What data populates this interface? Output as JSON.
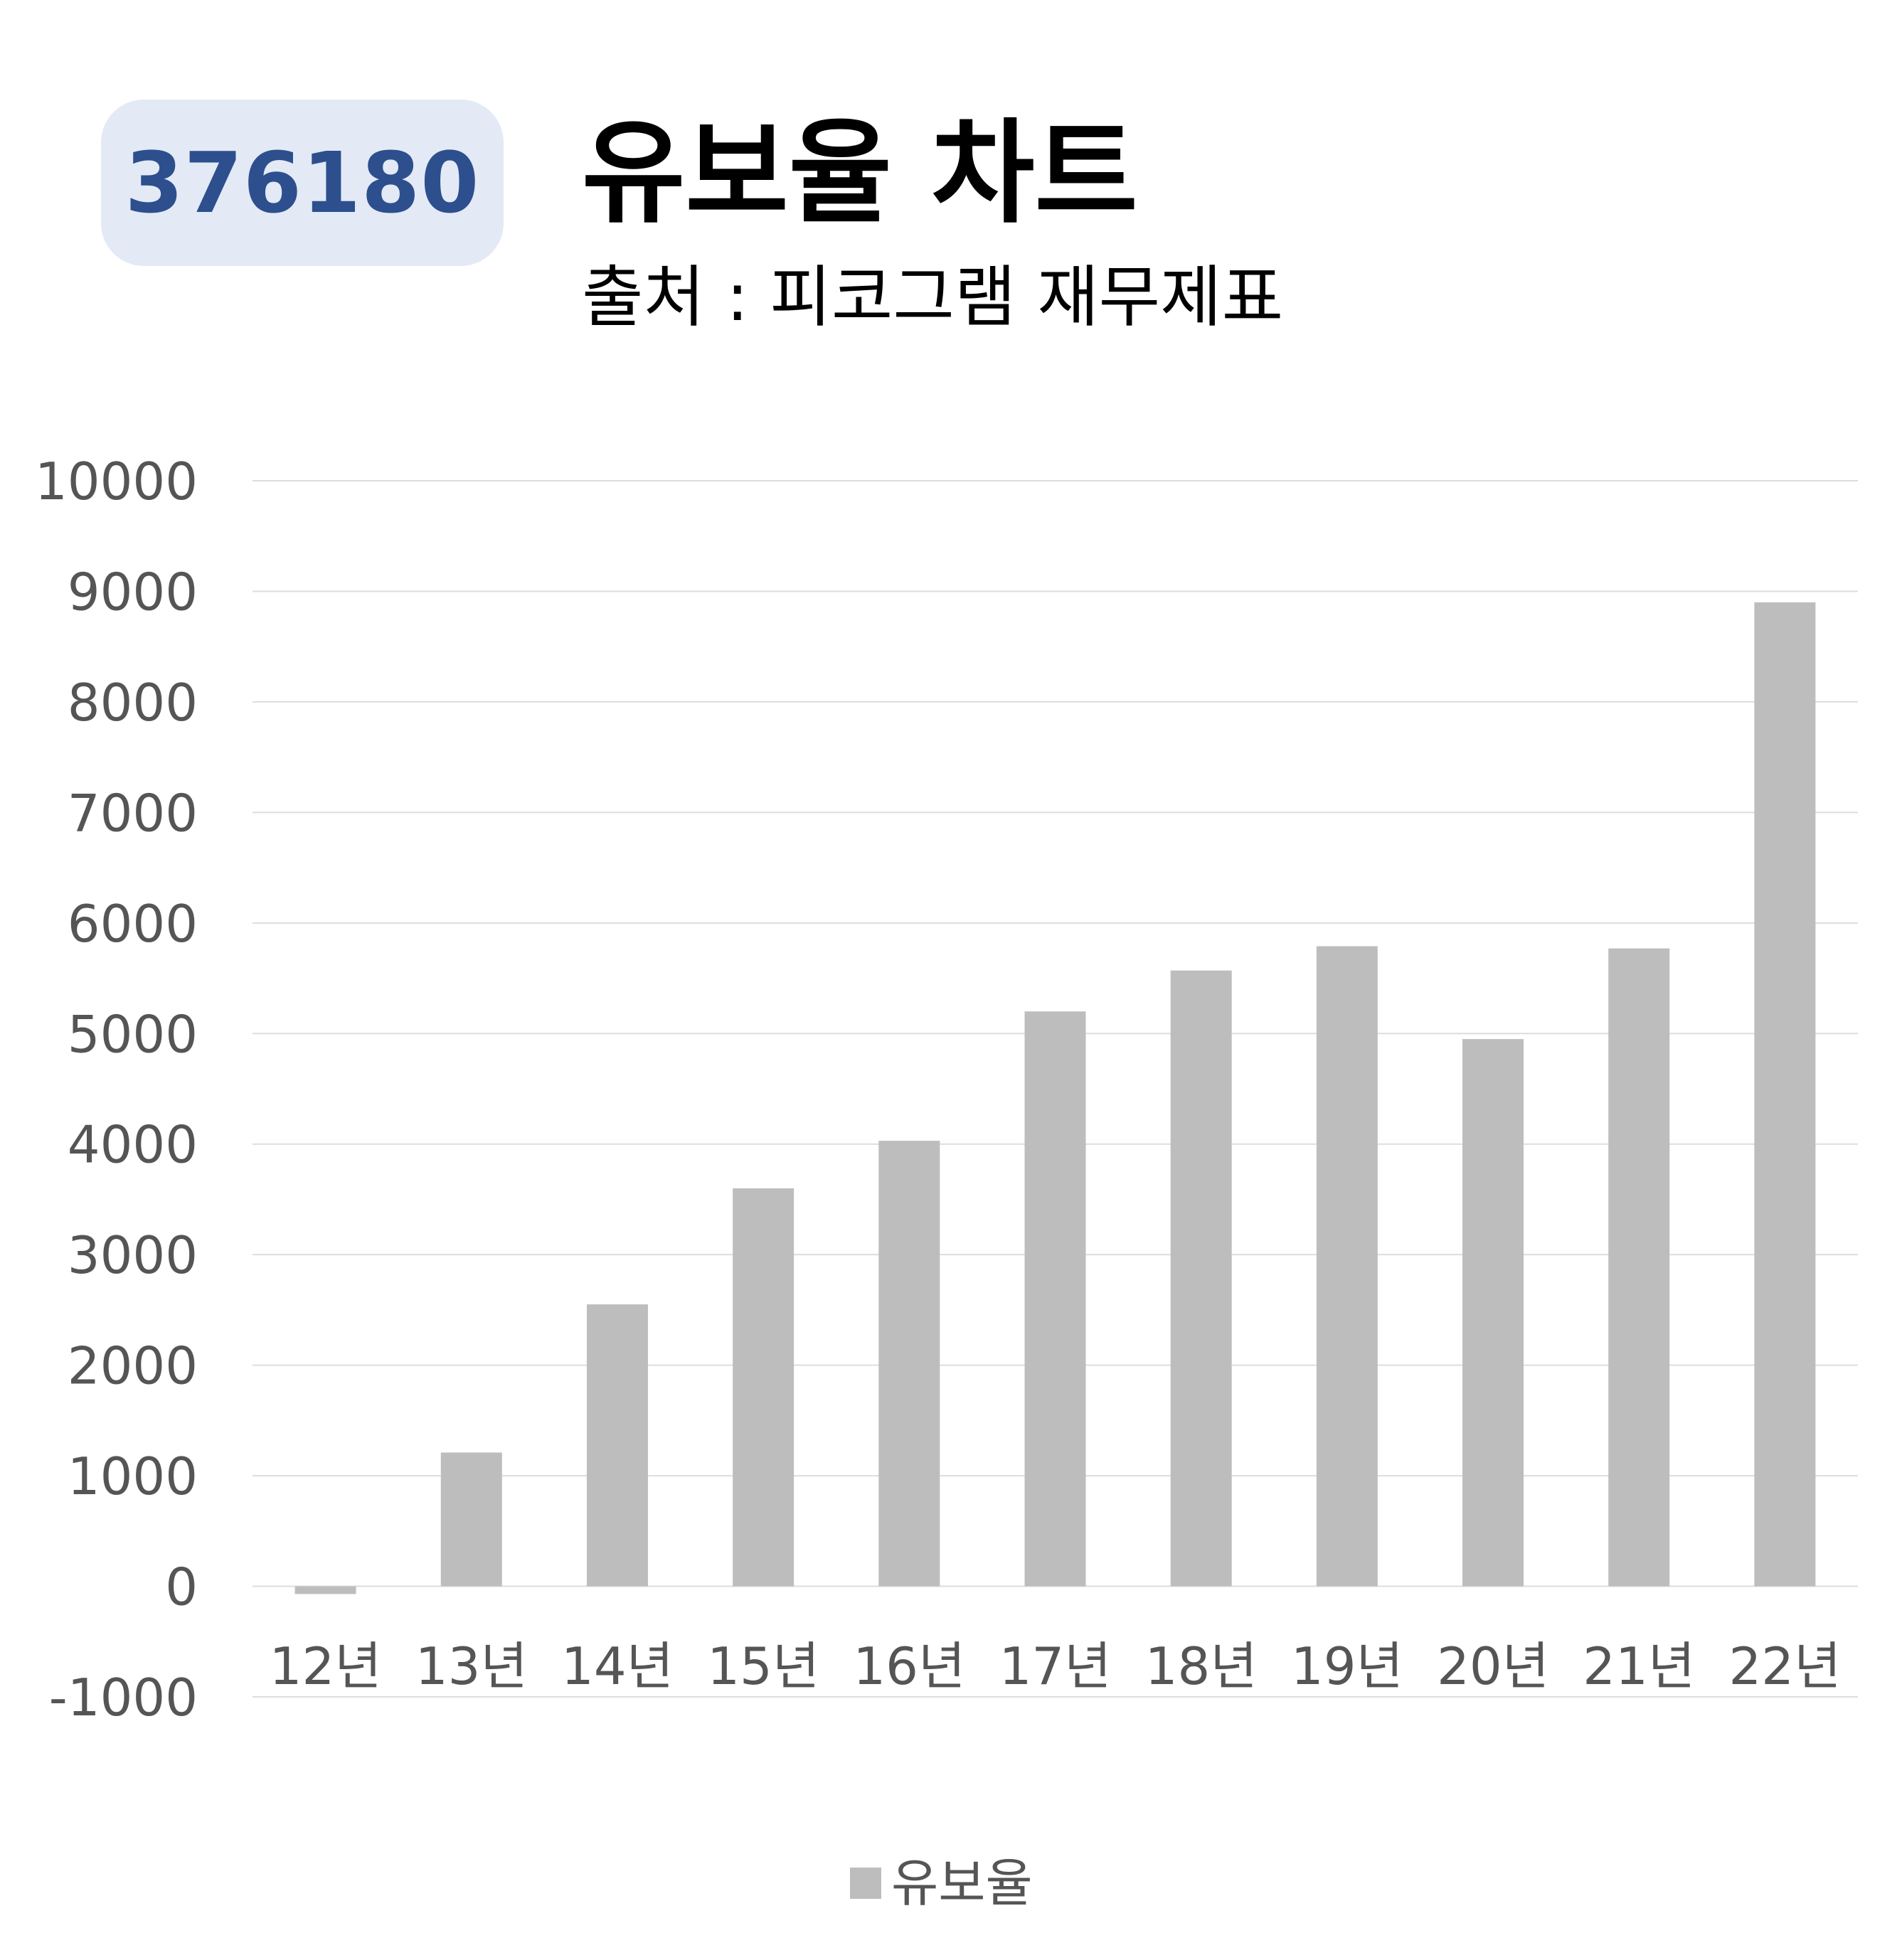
{
  "header": {
    "code": "376180",
    "title": "유보율 차트",
    "subtitle": "출처 : 피코그램 재무제표"
  },
  "chart_data": {
    "type": "bar",
    "categories": [
      "12년",
      "13년",
      "14년",
      "15년",
      "16년",
      "17년",
      "18년",
      "19년",
      "20년",
      "21년",
      "22년"
    ],
    "series": [
      {
        "name": "유보율",
        "values": [
          -70,
          1210,
          2550,
          3600,
          4030,
          5200,
          5570,
          5790,
          4950,
          5770,
          8900
        ],
        "color": "#bdbdbd"
      }
    ],
    "ylim": [
      -1000,
      10000
    ],
    "yticks": [
      10000,
      9000,
      8000,
      7000,
      6000,
      5000,
      4000,
      3000,
      2000,
      1000,
      0,
      -1000
    ],
    "grid": true,
    "legend_position": "bottom",
    "gridline_color": "#dddddd"
  }
}
